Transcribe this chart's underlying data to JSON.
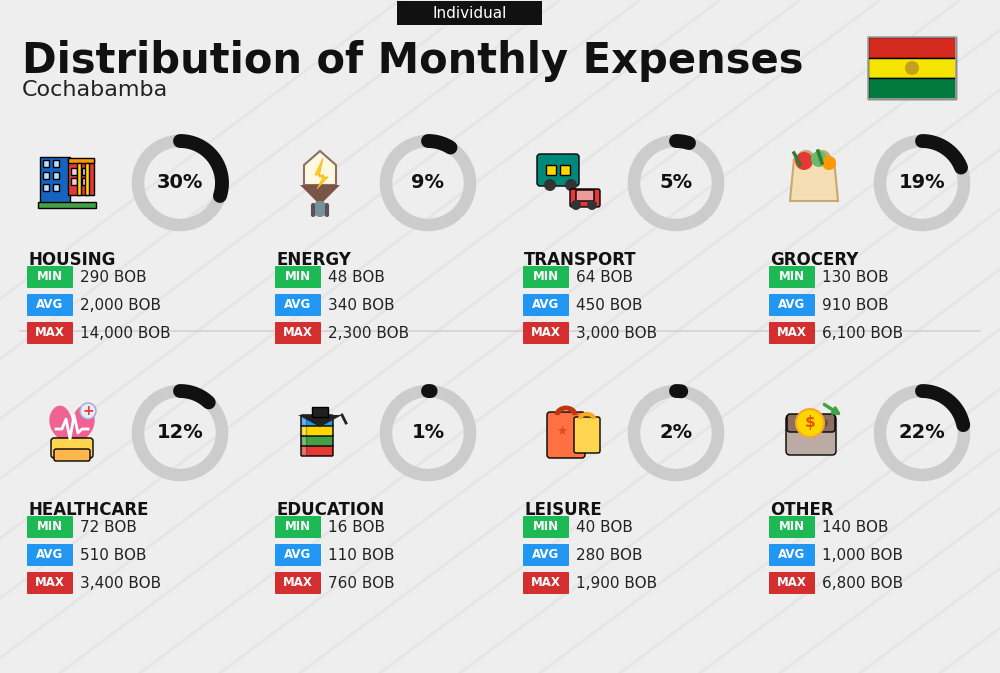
{
  "title": "Distribution of Monthly Expenses",
  "subtitle": "Cochabamba",
  "badge": "Individual",
  "bg_color": "#eeeeee",
  "categories": [
    {
      "name": "HOUSING",
      "pct": 30,
      "min_val": "290 BOB",
      "avg_val": "2,000 BOB",
      "max_val": "14,000 BOB",
      "row": 0,
      "col": 0
    },
    {
      "name": "ENERGY",
      "pct": 9,
      "min_val": "48 BOB",
      "avg_val": "340 BOB",
      "max_val": "2,300 BOB",
      "row": 0,
      "col": 1
    },
    {
      "name": "TRANSPORT",
      "pct": 5,
      "min_val": "64 BOB",
      "avg_val": "450 BOB",
      "max_val": "3,000 BOB",
      "row": 0,
      "col": 2
    },
    {
      "name": "GROCERY",
      "pct": 19,
      "min_val": "130 BOB",
      "avg_val": "910 BOB",
      "max_val": "6,100 BOB",
      "row": 0,
      "col": 3
    },
    {
      "name": "HEALTHCARE",
      "pct": 12,
      "min_val": "72 BOB",
      "avg_val": "510 BOB",
      "max_val": "3,400 BOB",
      "row": 1,
      "col": 0
    },
    {
      "name": "EDUCATION",
      "pct": 1,
      "min_val": "16 BOB",
      "avg_val": "110 BOB",
      "max_val": "760 BOB",
      "row": 1,
      "col": 1
    },
    {
      "name": "LEISURE",
      "pct": 2,
      "min_val": "40 BOB",
      "avg_val": "280 BOB",
      "max_val": "1,900 BOB",
      "row": 1,
      "col": 2
    },
    {
      "name": "OTHER",
      "pct": 22,
      "min_val": "140 BOB",
      "avg_val": "1,000 BOB",
      "max_val": "6,800 BOB",
      "row": 1,
      "col": 3
    }
  ],
  "min_color": "#1db954",
  "avg_color": "#2196f3",
  "max_color": "#d32f2f",
  "badge_bg": "#111111",
  "badge_text": "#ffffff",
  "title_color": "#111111",
  "subtitle_color": "#222222",
  "ring_filled_color": "#111111",
  "ring_empty_color": "#cccccc",
  "label_color": "#111111",
  "value_color": "#222222",
  "divider_color": "#cccccc",
  "stripe_color": "#dddddd",
  "flag_red": "#d52b1e",
  "flag_yellow": "#f4e400",
  "flag_green": "#007a3d"
}
